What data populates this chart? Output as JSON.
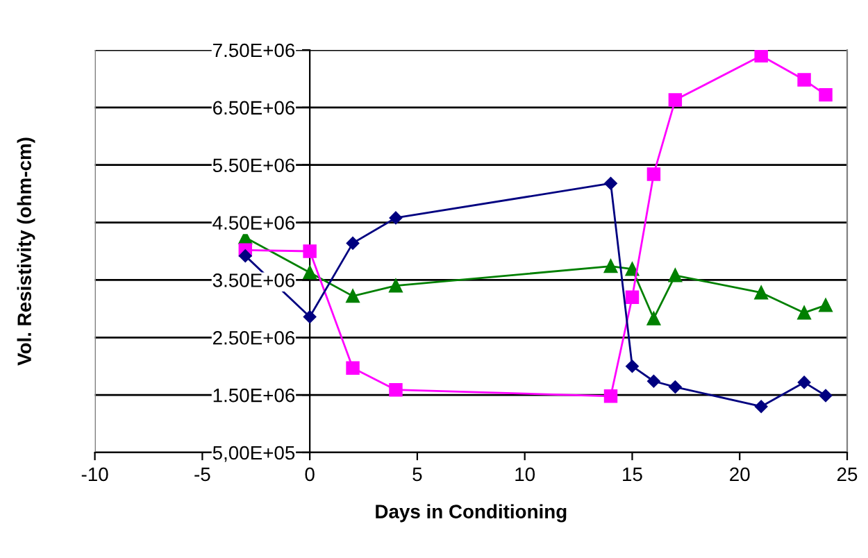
{
  "chart_data": {
    "type": "line",
    "xlabel": "Days in Conditioning",
    "ylabel": "Vol. Resistivity (ohm-cm)",
    "x": [
      -3,
      0,
      2,
      4,
      14,
      15,
      16,
      17,
      21,
      23,
      24
    ],
    "series": [
      {
        "color": "#000080",
        "marker": "diamond",
        "values": [
          3920000,
          2860000,
          4140000,
          4580000,
          5180000,
          2000000,
          1740000,
          1640000,
          1300000,
          1720000,
          1490000
        ]
      },
      {
        "color": "#ff00ff",
        "marker": "square",
        "values": [
          4020000,
          4000000,
          1970000,
          1590000,
          1480000,
          3200000,
          5340000,
          6630000,
          7400000,
          6980000,
          6720000
        ]
      },
      {
        "color": "#008000",
        "marker": "triangle",
        "values": [
          4240000,
          3630000,
          3220000,
          3400000,
          3740000,
          3690000,
          2830000,
          3580000,
          3280000,
          2930000,
          3060000
        ]
      }
    ],
    "xlim": [
      -10,
      25
    ],
    "xticks": [
      -10,
      -5,
      0,
      5,
      10,
      15,
      20,
      25
    ],
    "ylim": [
      500000,
      7500000
    ],
    "yticks": [
      {
        "value": 500000,
        "label": "5,00E+05"
      },
      {
        "value": 1500000,
        "label": "1.50E+06"
      },
      {
        "value": 2500000,
        "label": "2.50E+06"
      },
      {
        "value": 3500000,
        "label": "3.50E+06"
      },
      {
        "value": 4500000,
        "label": "4.50E+06"
      },
      {
        "value": 5500000,
        "label": "5.50E+06"
      },
      {
        "value": 6500000,
        "label": "6.50E+06"
      },
      {
        "value": 7500000,
        "label": "7.50E+06"
      }
    ],
    "grid": "y",
    "legend": false,
    "line_style": "solid"
  }
}
